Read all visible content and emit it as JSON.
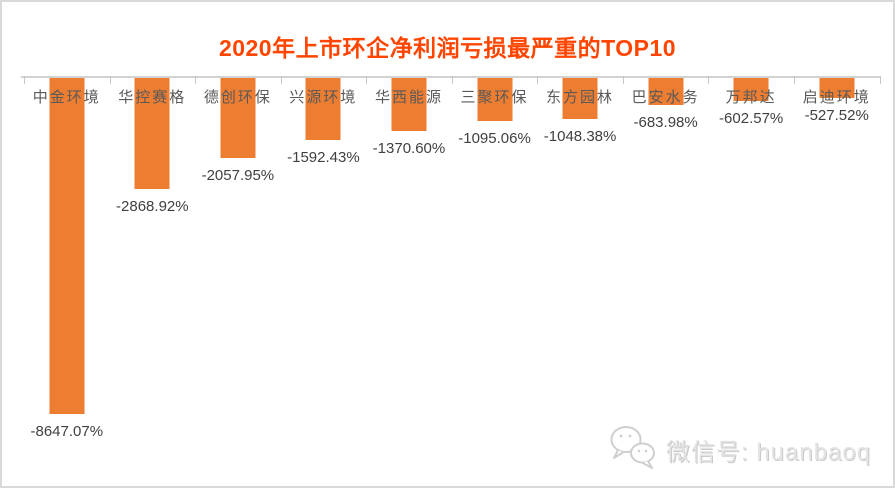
{
  "title": "2020年上市环企净利润亏损最严重的TOP10",
  "colors": {
    "title": "#FF4500",
    "bar": "#ED7D31",
    "axis_line": "#D2D2D2",
    "tick": "#C6C6C6",
    "category_label": "#595959",
    "value_label": "#404040",
    "frame_border": "#D9D9D9",
    "watermark": "#E3E3E3"
  },
  "watermark": {
    "icon": "wechat-icon",
    "text": "微信号: huanbaoq"
  },
  "chart_data": {
    "type": "bar",
    "title": "2020年上市环企净利润亏损最严重的TOP10",
    "categories": [
      "中金环境",
      "华控赛格",
      "德创环保",
      "兴源环境",
      "华西能源",
      "三聚环保",
      "东方园林",
      "巴安水务",
      "万邦达",
      "启迪环境"
    ],
    "values": [
      -8647.07,
      -2868.92,
      -2057.95,
      -1592.43,
      -1370.6,
      -1095.06,
      -1048.38,
      -683.98,
      -602.57,
      -527.52
    ],
    "value_labels": [
      "-8647.07%",
      "-2868.92%",
      "-2057.95%",
      "-1592.43%",
      "-1370.60%",
      "-1095.06%",
      "-1048.38%",
      "-683.98%",
      "-602.57%",
      "-527.52%"
    ],
    "xlabel": "",
    "ylabel": "",
    "unit": "%",
    "ylim": [
      -10000,
      0
    ],
    "axis_position": "top",
    "grid": false,
    "legend": false,
    "bar_color": "#ED7D31",
    "label_position": "outside-end-below"
  }
}
